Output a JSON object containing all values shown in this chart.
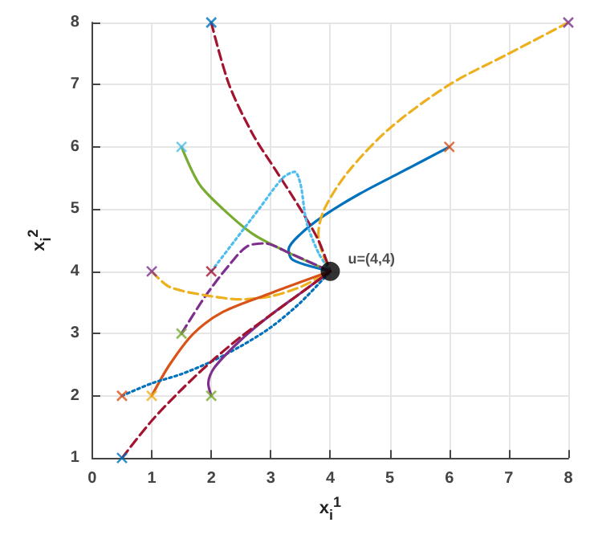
{
  "chart_data": {
    "type": "line",
    "xlabel": "x$_{i}$$^{1}$",
    "ylabel": "x$_{i}$$^{2}$",
    "xlim": [
      0,
      8
    ],
    "ylim": [
      1,
      8
    ],
    "xticks": [
      0,
      1,
      2,
      3,
      4,
      5,
      6,
      7,
      8
    ],
    "yticks": [
      1,
      2,
      3,
      4,
      5,
      6,
      7,
      8
    ],
    "grid": true,
    "annotations": [
      {
        "text": "u=(4,4)",
        "x": 4,
        "y": 4
      }
    ],
    "series": [
      {
        "color": "#0072bd",
        "line_style": "solid",
        "marker": "none",
        "x": [
          6,
          5.2,
          4.5,
          3.9,
          3.5,
          3.3,
          3.35,
          3.6,
          4
        ],
        "values": [
          6,
          5.6,
          5.25,
          4.9,
          4.6,
          4.35,
          4.2,
          4.1,
          4
        ]
      },
      {
        "color": "#edb120",
        "line_style": "dashed",
        "marker": "none",
        "x": [
          8,
          7,
          6,
          5,
          4.3,
          3.9,
          3.8,
          3.9,
          4
        ],
        "values": [
          8,
          7.5,
          7,
          6.3,
          5.6,
          5,
          4.6,
          4.2,
          4
        ]
      },
      {
        "color": "#a2142f",
        "line_style": "dashed",
        "marker": "none",
        "x": [
          2,
          2.3,
          2.7,
          3.1,
          3.5,
          3.8,
          4
        ],
        "values": [
          8,
          7,
          6.2,
          5.6,
          5,
          4.5,
          4
        ]
      },
      {
        "color": "#77ac30",
        "line_style": "solid",
        "marker": "none",
        "x": [
          1.5,
          1.8,
          2.2,
          2.7,
          3.3,
          4
        ],
        "values": [
          6,
          5.4,
          5,
          4.6,
          4.3,
          4
        ]
      },
      {
        "color": "#4dbeee",
        "line_style": "dotted",
        "marker": "none",
        "x": [
          2,
          2.4,
          2.8,
          3.2,
          3.4,
          3.5,
          3.6,
          3.8,
          4
        ],
        "values": [
          4,
          4.5,
          5,
          5.5,
          5.6,
          5.4,
          4.8,
          4.3,
          4
        ]
      },
      {
        "color": "#7e2f8e",
        "line_style": "dashed",
        "marker": "none",
        "x": [
          1.5,
          1.9,
          2.3,
          2.6,
          2.9,
          3.3,
          4
        ],
        "values": [
          3,
          3.6,
          4.1,
          4.4,
          4.45,
          4.3,
          4
        ]
      },
      {
        "color": "#edb120",
        "line_style": "dashed",
        "marker": "none",
        "x": [
          1,
          1.3,
          2,
          2.5,
          3,
          3.5,
          4
        ],
        "values": [
          4,
          3.75,
          3.6,
          3.55,
          3.6,
          3.75,
          4
        ]
      },
      {
        "color": "#d95319",
        "line_style": "solid",
        "marker": "none",
        "x": [
          1,
          1.3,
          1.7,
          2.2,
          3,
          4
        ],
        "values": [
          2,
          2.5,
          3,
          3.35,
          3.65,
          4
        ]
      },
      {
        "color": "#0072bd",
        "line_style": "dotted",
        "marker": "none",
        "x": [
          0.5,
          1,
          1.5,
          2,
          2.5,
          3,
          3.5,
          4
        ],
        "values": [
          2,
          2.2,
          2.35,
          2.55,
          2.8,
          3.1,
          3.5,
          4
        ]
      },
      {
        "color": "#7e2f8e",
        "line_style": "solid",
        "marker": "none",
        "x": [
          2,
          1.95,
          2.05,
          2.5,
          3,
          3.5,
          4
        ],
        "values": [
          2,
          2.2,
          2.45,
          2.9,
          3.3,
          3.65,
          4
        ]
      },
      {
        "color": "#a2142f",
        "line_style": "dashed",
        "marker": "none",
        "x": [
          0.5,
          1,
          1.5,
          2,
          2.5,
          3,
          3.5,
          4
        ],
        "values": [
          1,
          1.6,
          2.1,
          2.55,
          2.95,
          3.3,
          3.65,
          4
        ]
      },
      {
        "type": "scatter",
        "marker": "cross",
        "x": [
          6,
          8,
          2,
          1.5,
          1,
          2,
          1.5,
          0.5,
          1,
          2,
          0.5
        ],
        "values": [
          6,
          8,
          8,
          6,
          4,
          4,
          3,
          2,
          2,
          2,
          1
        ],
        "colors": [
          "#d95319",
          "#7e2f8e",
          "#0072bd",
          "#4dbeee",
          "#7e2f8e",
          "#a2142f",
          "#77ac30",
          "#d95319",
          "#edb120",
          "#77ac30",
          "#0072bd"
        ]
      },
      {
        "type": "scatter",
        "marker": "circle",
        "color": "#000000",
        "x": [
          4
        ],
        "values": [
          4
        ]
      }
    ]
  }
}
